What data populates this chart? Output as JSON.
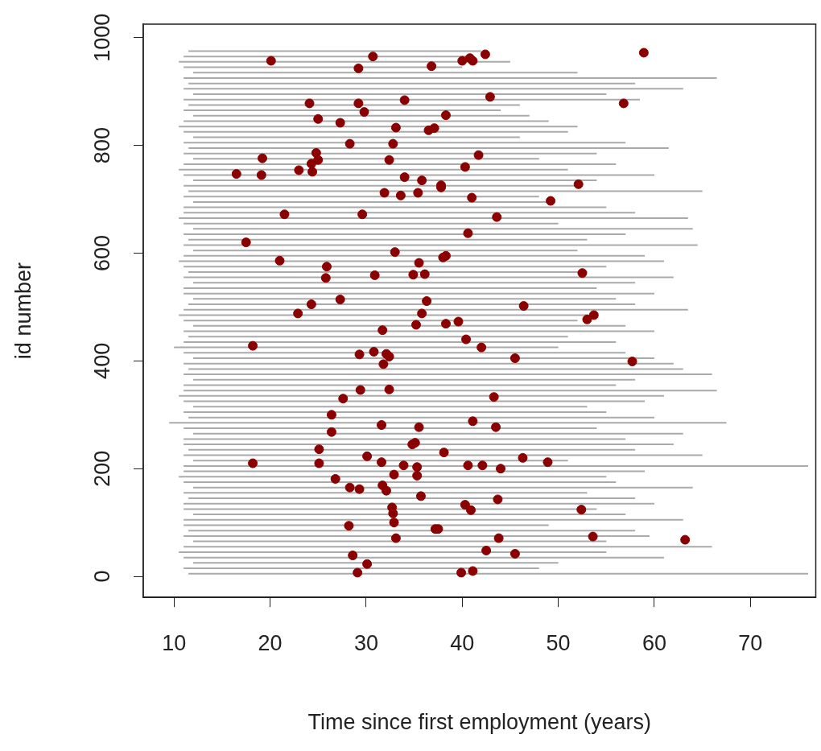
{
  "chart_data": {
    "type": "scatter",
    "xlabel": "Time since first employment (years)",
    "ylabel": "id number",
    "xlim": [
      6.8,
      76.8
    ],
    "xticks": [
      10,
      20,
      30,
      40,
      50,
      60,
      70
    ],
    "ylim": [
      -39,
      1025
    ],
    "yticks": [
      0,
      200,
      400,
      600,
      800,
      1000
    ],
    "legend": false,
    "series": [
      {
        "type": "line",
        "color": "#aaaaaa",
        "marker": "none",
        "x": [
          11.5,
          42
        ],
        "values": [
          975,
          975
        ]
      },
      {
        "type": "line",
        "color": "#aaaaaa",
        "marker": "none",
        "x": [
          11,
          41
        ],
        "values": [
          965,
          965
        ]
      },
      {
        "type": "line",
        "color": "#aaaaaa",
        "marker": "none",
        "x": [
          10.5,
          45
        ],
        "values": [
          955,
          955
        ]
      },
      {
        "type": "line",
        "color": "#aaaaaa",
        "marker": "none",
        "x": [
          11,
          40
        ],
        "values": [
          945,
          945
        ]
      },
      {
        "type": "line",
        "color": "#aaaaaa",
        "marker": "none",
        "x": [
          12,
          52
        ],
        "values": [
          935,
          935
        ]
      },
      {
        "type": "line",
        "color": "#aaaaaa",
        "marker": "none",
        "x": [
          11,
          66.5
        ],
        "values": [
          925,
          925
        ]
      },
      {
        "type": "line",
        "color": "#aaaaaa",
        "marker": "none",
        "x": [
          11.5,
          58
        ],
        "values": [
          915,
          915
        ]
      },
      {
        "type": "line",
        "color": "#aaaaaa",
        "marker": "none",
        "x": [
          11,
          63
        ],
        "values": [
          905,
          905
        ]
      },
      {
        "type": "line",
        "color": "#aaaaaa",
        "marker": "none",
        "x": [
          12,
          55
        ],
        "values": [
          895,
          895
        ]
      },
      {
        "type": "line",
        "color": "#aaaaaa",
        "marker": "none",
        "x": [
          11,
          58.5
        ],
        "values": [
          885,
          885
        ]
      },
      {
        "type": "line",
        "color": "#aaaaaa",
        "marker": "none",
        "x": [
          11.5,
          46
        ],
        "values": [
          875,
          875
        ]
      },
      {
        "type": "line",
        "color": "#aaaaaa",
        "marker": "none",
        "x": [
          11,
          44
        ],
        "values": [
          865,
          865
        ]
      },
      {
        "type": "line",
        "color": "#aaaaaa",
        "marker": "none",
        "x": [
          12,
          47
        ],
        "values": [
          855,
          855
        ]
      },
      {
        "type": "line",
        "color": "#aaaaaa",
        "marker": "none",
        "x": [
          11,
          49
        ],
        "values": [
          845,
          845
        ]
      },
      {
        "type": "line",
        "color": "#aaaaaa",
        "marker": "none",
        "x": [
          10.5,
          52
        ],
        "values": [
          835,
          835
        ]
      },
      {
        "type": "line",
        "color": "#aaaaaa",
        "marker": "none",
        "x": [
          11,
          51
        ],
        "values": [
          825,
          825
        ]
      },
      {
        "type": "line",
        "color": "#aaaaaa",
        "marker": "none",
        "x": [
          12,
          46
        ],
        "values": [
          815,
          815
        ]
      },
      {
        "type": "line",
        "color": "#aaaaaa",
        "marker": "none",
        "x": [
          11,
          57
        ],
        "values": [
          805,
          805
        ]
      },
      {
        "type": "line",
        "color": "#aaaaaa",
        "marker": "none",
        "x": [
          11.5,
          61.5
        ],
        "values": [
          795,
          795
        ]
      },
      {
        "type": "line",
        "color": "#aaaaaa",
        "marker": "none",
        "x": [
          11,
          54
        ],
        "values": [
          785,
          785
        ]
      },
      {
        "type": "line",
        "color": "#aaaaaa",
        "marker": "none",
        "x": [
          12,
          48
        ],
        "values": [
          775,
          775
        ]
      },
      {
        "type": "line",
        "color": "#aaaaaa",
        "marker": "none",
        "x": [
          11,
          56
        ],
        "values": [
          765,
          765
        ]
      },
      {
        "type": "line",
        "color": "#aaaaaa",
        "marker": "none",
        "x": [
          10.5,
          51
        ],
        "values": [
          755,
          755
        ]
      },
      {
        "type": "line",
        "color": "#aaaaaa",
        "marker": "none",
        "x": [
          11,
          60
        ],
        "values": [
          745,
          745
        ]
      },
      {
        "type": "line",
        "color": "#aaaaaa",
        "marker": "none",
        "x": [
          12,
          54
        ],
        "values": [
          735,
          735
        ]
      },
      {
        "type": "line",
        "color": "#aaaaaa",
        "marker": "none",
        "x": [
          11,
          52.5
        ],
        "values": [
          725,
          725
        ]
      },
      {
        "type": "line",
        "color": "#aaaaaa",
        "marker": "none",
        "x": [
          11.5,
          65
        ],
        "values": [
          715,
          715
        ]
      },
      {
        "type": "line",
        "color": "#aaaaaa",
        "marker": "none",
        "x": [
          11,
          48
        ],
        "values": [
          705,
          705
        ]
      },
      {
        "type": "line",
        "color": "#aaaaaa",
        "marker": "none",
        "x": [
          12,
          49
        ],
        "values": [
          695,
          695
        ]
      },
      {
        "type": "line",
        "color": "#aaaaaa",
        "marker": "none",
        "x": [
          11,
          55
        ],
        "values": [
          685,
          685
        ]
      },
      {
        "type": "line",
        "color": "#aaaaaa",
        "marker": "none",
        "x": [
          11,
          58
        ],
        "values": [
          675,
          675
        ]
      },
      {
        "type": "line",
        "color": "#aaaaaa",
        "marker": "none",
        "x": [
          10.5,
          63.5
        ],
        "values": [
          665,
          665
        ]
      },
      {
        "type": "line",
        "color": "#aaaaaa",
        "marker": "none",
        "x": [
          11,
          50
        ],
        "values": [
          655,
          655
        ]
      },
      {
        "type": "line",
        "color": "#aaaaaa",
        "marker": "none",
        "x": [
          12,
          64
        ],
        "values": [
          645,
          645
        ]
      },
      {
        "type": "line",
        "color": "#aaaaaa",
        "marker": "none",
        "x": [
          11,
          57
        ],
        "values": [
          635,
          635
        ]
      },
      {
        "type": "line",
        "color": "#aaaaaa",
        "marker": "none",
        "x": [
          11.5,
          53
        ],
        "values": [
          625,
          625
        ]
      },
      {
        "type": "line",
        "color": "#aaaaaa",
        "marker": "none",
        "x": [
          11,
          64.5
        ],
        "values": [
          615,
          615
        ]
      },
      {
        "type": "line",
        "color": "#aaaaaa",
        "marker": "none",
        "x": [
          12,
          52
        ],
        "values": [
          605,
          605
        ]
      },
      {
        "type": "line",
        "color": "#aaaaaa",
        "marker": "none",
        "x": [
          11,
          59
        ],
        "values": [
          595,
          595
        ]
      },
      {
        "type": "line",
        "color": "#aaaaaa",
        "marker": "none",
        "x": [
          10.5,
          61
        ],
        "values": [
          585,
          585
        ]
      },
      {
        "type": "line",
        "color": "#aaaaaa",
        "marker": "none",
        "x": [
          11,
          55
        ],
        "values": [
          575,
          575
        ]
      },
      {
        "type": "line",
        "color": "#aaaaaa",
        "marker": "none",
        "x": [
          11.5,
          53
        ],
        "values": [
          565,
          565
        ]
      },
      {
        "type": "line",
        "color": "#aaaaaa",
        "marker": "none",
        "x": [
          11,
          62
        ],
        "values": [
          555,
          555
        ]
      },
      {
        "type": "line",
        "color": "#aaaaaa",
        "marker": "none",
        "x": [
          12,
          58
        ],
        "values": [
          545,
          545
        ]
      },
      {
        "type": "line",
        "color": "#aaaaaa",
        "marker": "none",
        "x": [
          11,
          54
        ],
        "values": [
          535,
          535
        ]
      },
      {
        "type": "line",
        "color": "#aaaaaa",
        "marker": "none",
        "x": [
          11,
          60
        ],
        "values": [
          525,
          525
        ]
      },
      {
        "type": "line",
        "color": "#aaaaaa",
        "marker": "none",
        "x": [
          12,
          56
        ],
        "values": [
          515,
          515
        ]
      },
      {
        "type": "line",
        "color": "#aaaaaa",
        "marker": "none",
        "x": [
          11.5,
          58
        ],
        "values": [
          505,
          505
        ]
      },
      {
        "type": "line",
        "color": "#aaaaaa",
        "marker": "none",
        "x": [
          11,
          63.5
        ],
        "values": [
          495,
          495
        ]
      },
      {
        "type": "line",
        "color": "#aaaaaa",
        "marker": "none",
        "x": [
          10.5,
          54
        ],
        "values": [
          485,
          485
        ]
      },
      {
        "type": "line",
        "color": "#aaaaaa",
        "marker": "none",
        "x": [
          11,
          52
        ],
        "values": [
          475,
          475
        ]
      },
      {
        "type": "line",
        "color": "#aaaaaa",
        "marker": "none",
        "x": [
          12,
          57
        ],
        "values": [
          465,
          465
        ]
      },
      {
        "type": "line",
        "color": "#aaaaaa",
        "marker": "none",
        "x": [
          11,
          60
        ],
        "values": [
          455,
          455
        ]
      },
      {
        "type": "line",
        "color": "#aaaaaa",
        "marker": "none",
        "x": [
          11.5,
          51
        ],
        "values": [
          445,
          445
        ]
      },
      {
        "type": "line",
        "color": "#aaaaaa",
        "marker": "none",
        "x": [
          11,
          56
        ],
        "values": [
          435,
          435
        ]
      },
      {
        "type": "line",
        "color": "#aaaaaa",
        "marker": "none",
        "x": [
          10,
          50
        ],
        "values": [
          425,
          425
        ]
      },
      {
        "type": "line",
        "color": "#aaaaaa",
        "marker": "none",
        "x": [
          11,
          57
        ],
        "values": [
          415,
          415
        ]
      },
      {
        "type": "line",
        "color": "#aaaaaa",
        "marker": "none",
        "x": [
          12,
          60
        ],
        "values": [
          405,
          405
        ]
      },
      {
        "type": "line",
        "color": "#aaaaaa",
        "marker": "none",
        "x": [
          11,
          62
        ],
        "values": [
          395,
          395
        ]
      },
      {
        "type": "line",
        "color": "#aaaaaa",
        "marker": "none",
        "x": [
          11.5,
          63
        ],
        "values": [
          385,
          385
        ]
      },
      {
        "type": "line",
        "color": "#aaaaaa",
        "marker": "none",
        "x": [
          11,
          66
        ],
        "values": [
          375,
          375
        ]
      },
      {
        "type": "line",
        "color": "#aaaaaa",
        "marker": "none",
        "x": [
          12,
          58
        ],
        "values": [
          365,
          365
        ]
      },
      {
        "type": "line",
        "color": "#aaaaaa",
        "marker": "none",
        "x": [
          11,
          56
        ],
        "values": [
          355,
          355
        ]
      },
      {
        "type": "line",
        "color": "#aaaaaa",
        "marker": "none",
        "x": [
          11,
          66.5
        ],
        "values": [
          345,
          345
        ]
      },
      {
        "type": "line",
        "color": "#aaaaaa",
        "marker": "none",
        "x": [
          10.5,
          61
        ],
        "values": [
          335,
          335
        ]
      },
      {
        "type": "line",
        "color": "#aaaaaa",
        "marker": "none",
        "x": [
          11,
          59
        ],
        "values": [
          325,
          325
        ]
      },
      {
        "type": "line",
        "color": "#aaaaaa",
        "marker": "none",
        "x": [
          12,
          53
        ],
        "values": [
          315,
          315
        ]
      },
      {
        "type": "line",
        "color": "#aaaaaa",
        "marker": "none",
        "x": [
          11,
          55
        ],
        "values": [
          305,
          305
        ]
      },
      {
        "type": "line",
        "color": "#aaaaaa",
        "marker": "none",
        "x": [
          11.5,
          60
        ],
        "values": [
          295,
          295
        ]
      },
      {
        "type": "line",
        "color": "#aaaaaa",
        "marker": "none",
        "x": [
          9.5,
          67.5
        ],
        "values": [
          285,
          285
        ]
      },
      {
        "type": "line",
        "color": "#aaaaaa",
        "marker": "none",
        "x": [
          11,
          54
        ],
        "values": [
          275,
          275
        ]
      },
      {
        "type": "line",
        "color": "#aaaaaa",
        "marker": "none",
        "x": [
          12,
          63
        ],
        "values": [
          265,
          265
        ]
      },
      {
        "type": "line",
        "color": "#aaaaaa",
        "marker": "none",
        "x": [
          11,
          57
        ],
        "values": [
          255,
          255
        ]
      },
      {
        "type": "line",
        "color": "#aaaaaa",
        "marker": "none",
        "x": [
          11,
          62
        ],
        "values": [
          245,
          245
        ]
      },
      {
        "type": "line",
        "color": "#aaaaaa",
        "marker": "none",
        "x": [
          11.5,
          58
        ],
        "values": [
          235,
          235
        ]
      },
      {
        "type": "line",
        "color": "#aaaaaa",
        "marker": "none",
        "x": [
          11,
          65
        ],
        "values": [
          225,
          225
        ]
      },
      {
        "type": "line",
        "color": "#aaaaaa",
        "marker": "none",
        "x": [
          12,
          51
        ],
        "values": [
          215,
          215
        ]
      },
      {
        "type": "line",
        "color": "#aaaaaa",
        "marker": "none",
        "x": [
          11,
          76
        ],
        "values": [
          205,
          205
        ]
      },
      {
        "type": "line",
        "color": "#aaaaaa",
        "marker": "none",
        "x": [
          11,
          59
        ],
        "values": [
          195,
          195
        ]
      },
      {
        "type": "line",
        "color": "#aaaaaa",
        "marker": "none",
        "x": [
          10.5,
          55
        ],
        "values": [
          185,
          185
        ]
      },
      {
        "type": "line",
        "color": "#aaaaaa",
        "marker": "none",
        "x": [
          11,
          56
        ],
        "values": [
          175,
          175
        ]
      },
      {
        "type": "line",
        "color": "#aaaaaa",
        "marker": "none",
        "x": [
          12,
          64
        ],
        "values": [
          165,
          165
        ]
      },
      {
        "type": "line",
        "color": "#aaaaaa",
        "marker": "none",
        "x": [
          11,
          53
        ],
        "values": [
          155,
          155
        ]
      },
      {
        "type": "line",
        "color": "#aaaaaa",
        "marker": "none",
        "x": [
          11.5,
          58
        ],
        "values": [
          145,
          145
        ]
      },
      {
        "type": "line",
        "color": "#aaaaaa",
        "marker": "none",
        "x": [
          11,
          60
        ],
        "values": [
          135,
          135
        ]
      },
      {
        "type": "line",
        "color": "#aaaaaa",
        "marker": "none",
        "x": [
          11,
          54
        ],
        "values": [
          125,
          125
        ]
      },
      {
        "type": "line",
        "color": "#aaaaaa",
        "marker": "none",
        "x": [
          12,
          57
        ],
        "values": [
          115,
          115
        ]
      },
      {
        "type": "line",
        "color": "#aaaaaa",
        "marker": "none",
        "x": [
          11,
          63
        ],
        "values": [
          105,
          105
        ]
      },
      {
        "type": "line",
        "color": "#aaaaaa",
        "marker": "none",
        "x": [
          11,
          49
        ],
        "values": [
          95,
          95
        ]
      },
      {
        "type": "line",
        "color": "#aaaaaa",
        "marker": "none",
        "x": [
          11.5,
          58
        ],
        "values": [
          85,
          85
        ]
      },
      {
        "type": "line",
        "color": "#aaaaaa",
        "marker": "none",
        "x": [
          11,
          59.5
        ],
        "values": [
          75,
          75
        ]
      },
      {
        "type": "line",
        "color": "#aaaaaa",
        "marker": "none",
        "x": [
          12,
          55
        ],
        "values": [
          65,
          65
        ]
      },
      {
        "type": "line",
        "color": "#aaaaaa",
        "marker": "none",
        "x": [
          11,
          66
        ],
        "values": [
          55,
          55
        ]
      },
      {
        "type": "line",
        "color": "#aaaaaa",
        "marker": "none",
        "x": [
          10.5,
          55
        ],
        "values": [
          45,
          45
        ]
      },
      {
        "type": "line",
        "color": "#aaaaaa",
        "marker": "none",
        "x": [
          11,
          61
        ],
        "values": [
          35,
          35
        ]
      },
      {
        "type": "line",
        "color": "#aaaaaa",
        "marker": "none",
        "x": [
          12,
          50
        ],
        "values": [
          25,
          25
        ]
      },
      {
        "type": "line",
        "color": "#aaaaaa",
        "marker": "none",
        "x": [
          11,
          48
        ],
        "values": [
          15,
          15
        ]
      },
      {
        "type": "line",
        "color": "#aaaaaa",
        "marker": "none",
        "x": [
          11.5,
          76
        ],
        "values": [
          5,
          5
        ]
      },
      {
        "type": "scatter",
        "color": "#8b0000",
        "marker": "circle",
        "x": [
          20.1,
          30.7,
          29.2,
          36.8,
          40.0,
          40.8,
          41.1,
          42.4,
          58.9,
          24.1,
          29.2,
          29.8,
          34.0,
          42.9,
          56.8,
          25.0,
          27.3,
          33.1,
          36.5,
          37.1,
          38.3,
          28.3,
          32.8,
          24.8,
          25.0,
          24.3,
          41.7,
          32.4,
          16.5,
          19.2,
          19.1,
          23.0,
          24.4,
          40.3,
          34.0,
          35.8,
          37.8,
          37.8,
          35.4,
          31.9,
          33.6,
          41.0,
          52.1,
          49.2,
          21.5,
          29.6,
          43.6,
          40.6,
          17.5,
          21.0,
          33.0,
          35.5,
          38.0,
          38.3,
          25.9,
          25.8,
          30.9,
          34.9,
          36.1,
          52.5,
          36.3,
          27.3,
          24.3,
          22.9,
          35.8,
          35.2,
          38.3,
          39.6,
          46.4,
          53.0,
          53.7,
          31.7,
          18.2,
          30.8,
          29.3,
          32.1,
          32.4,
          31.8,
          40.4,
          42.0,
          45.5,
          57.7,
          32.4,
          29.4,
          27.6,
          43.3,
          26.4,
          26.4,
          31.6,
          35.5,
          41.1,
          43.5,
          25.1,
          34.8,
          35.1,
          38.1,
          18.2,
          25.1,
          30.1,
          31.6,
          33.9,
          35.3,
          35.3,
          32.9,
          40.6,
          42.1,
          44.0,
          46.3,
          48.9,
          26.8,
          28.3,
          29.3,
          31.7,
          32.1,
          35.7,
          43.7,
          32.7,
          32.8,
          32.9,
          40.3,
          40.9,
          52.4,
          28.2,
          33.1,
          37.2,
          37.5,
          43.8,
          53.6,
          63.2,
          42.5,
          45.5,
          28.6,
          30.1,
          29.1,
          39.9,
          41.1
        ],
        "values": [
          957,
          965,
          943,
          947,
          957,
          962,
          957,
          969,
          972,
          878,
          878,
          862,
          884,
          890,
          878,
          849,
          842,
          833,
          828,
          832,
          856,
          803,
          803,
          786,
          773,
          766,
          782,
          773,
          747,
          776,
          745,
          754,
          751,
          760,
          741,
          735,
          726,
          722,
          712,
          712,
          707,
          703,
          728,
          697,
          672,
          672,
          667,
          637,
          620,
          586,
          602,
          582,
          592,
          595,
          575,
          554,
          559,
          560,
          561,
          563,
          511,
          514,
          505,
          488,
          488,
          467,
          469,
          473,
          502,
          477,
          485,
          457,
          428,
          417,
          412,
          413,
          408,
          394,
          440,
          425,
          405,
          399,
          347,
          346,
          330,
          333,
          300,
          268,
          281,
          277,
          288,
          277,
          236,
          245,
          248,
          230,
          210,
          210,
          223,
          212,
          206,
          203,
          187,
          189,
          206,
          206,
          200,
          220,
          212,
          181,
          165,
          162,
          169,
          159,
          149,
          143,
          128,
          117,
          100,
          133,
          123,
          124,
          94,
          71,
          88,
          88,
          71,
          74,
          68,
          48,
          42,
          39,
          23,
          7,
          7,
          10
        ]
      }
    ]
  }
}
